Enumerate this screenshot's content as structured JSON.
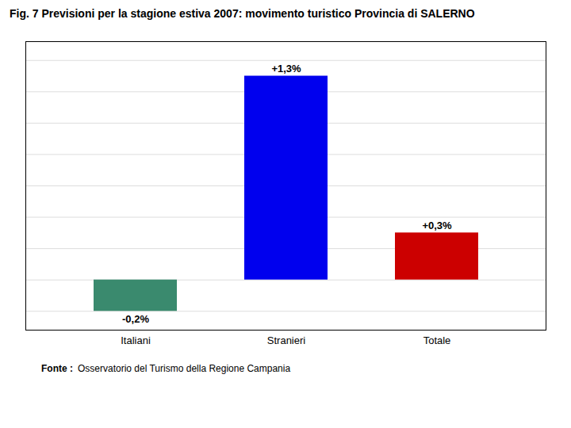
{
  "chart_data": {
    "type": "bar",
    "title": "Fig. 7 Previsioni per la stagione estiva 2007: movimento turistico Provincia di SALERNO",
    "categories": [
      "Italiani",
      "Stranieri",
      "Totale"
    ],
    "values": [
      -0.2,
      1.3,
      0.3
    ],
    "value_labels": [
      "-0,2%",
      "+1,3%",
      "+0,3%"
    ],
    "data_labels": true,
    "colors": [
      "#3a8a6e",
      "#0000ee",
      "#cc0000"
    ],
    "ylim": [
      -0.32,
      1.52
    ],
    "yticks": [
      -0.2,
      0.0,
      0.2,
      0.4,
      0.6,
      0.8,
      1.0,
      1.2,
      1.4
    ],
    "grid": true,
    "tick_labels": "x",
    "annotations": [
      "Fonte :",
      "Osservatorio del Turismo della Regione Campania"
    ]
  }
}
